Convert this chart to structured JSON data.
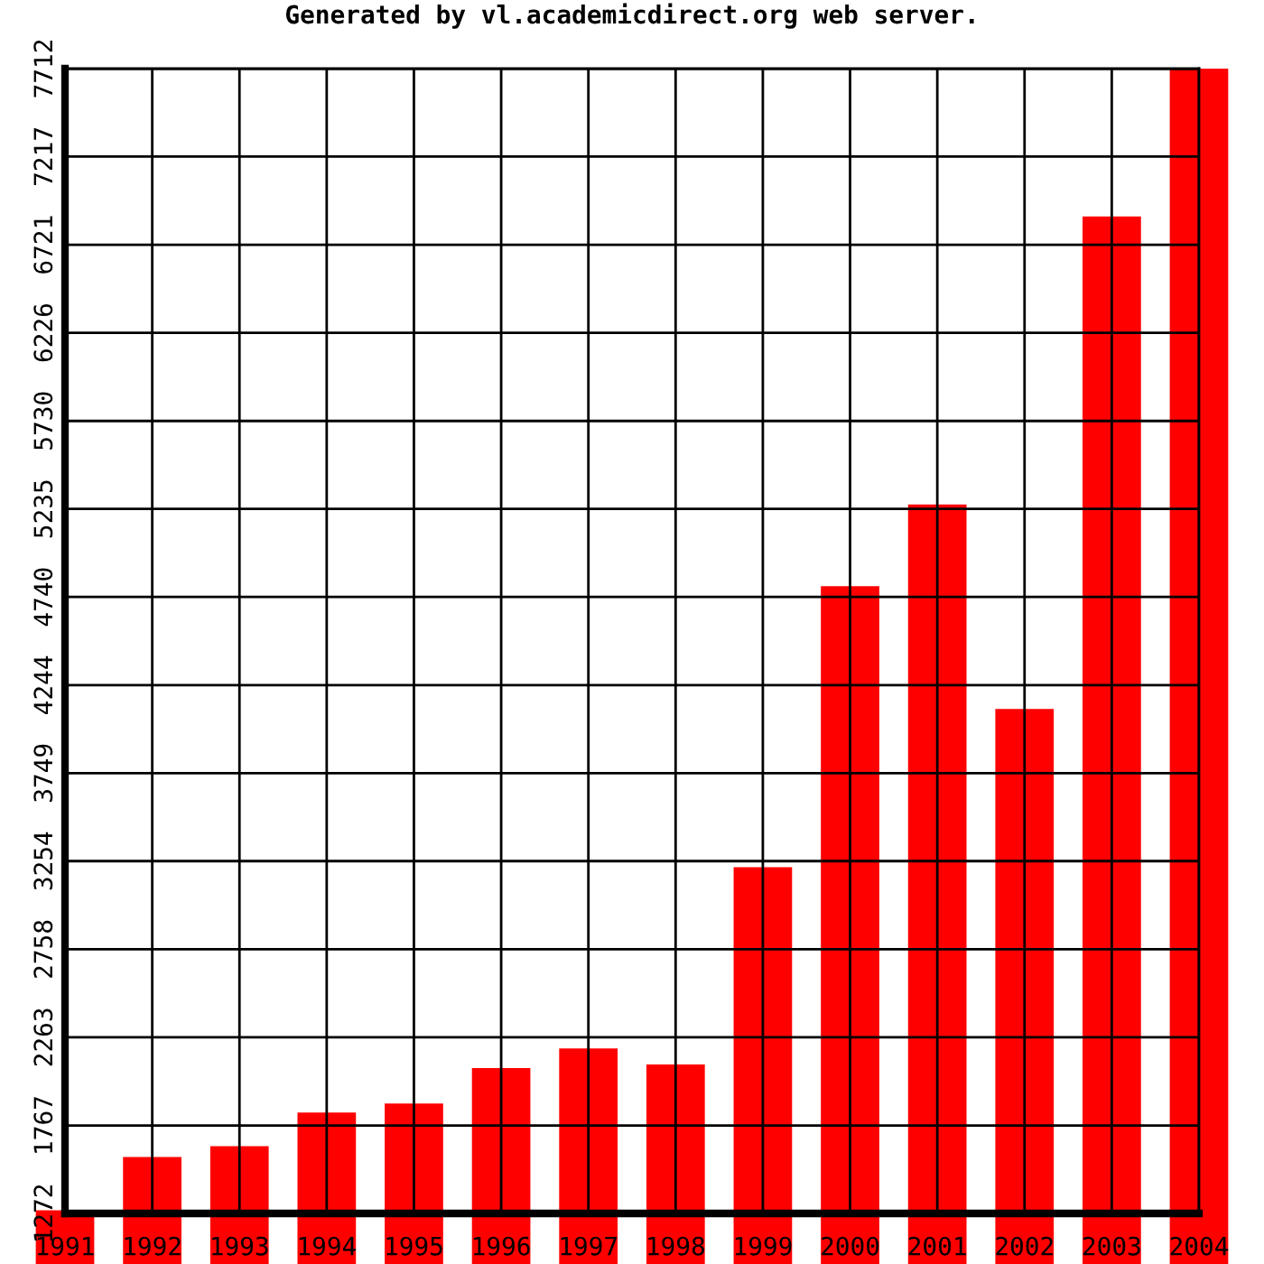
{
  "chart_data": {
    "type": "bar",
    "title": "Generated by vl.academicdirect.org web server.",
    "categories": [
      "1991",
      "1992",
      "1993",
      "1994",
      "1995",
      "1996",
      "1997",
      "1998",
      "1999",
      "2000",
      "2001",
      "2002",
      "2003",
      "2004"
    ],
    "values": [
      1290,
      1590,
      1650,
      1840,
      1890,
      2090,
      2200,
      2110,
      3220,
      4800,
      5260,
      4110,
      6880,
      7712
    ],
    "color": "#ff0000",
    "ylim": [
      1272,
      7712
    ],
    "yticks": [
      1272,
      1767,
      2263,
      2758,
      3254,
      3749,
      4244,
      4740,
      5235,
      5730,
      6226,
      6721,
      7217,
      7712
    ],
    "grid": true
  }
}
